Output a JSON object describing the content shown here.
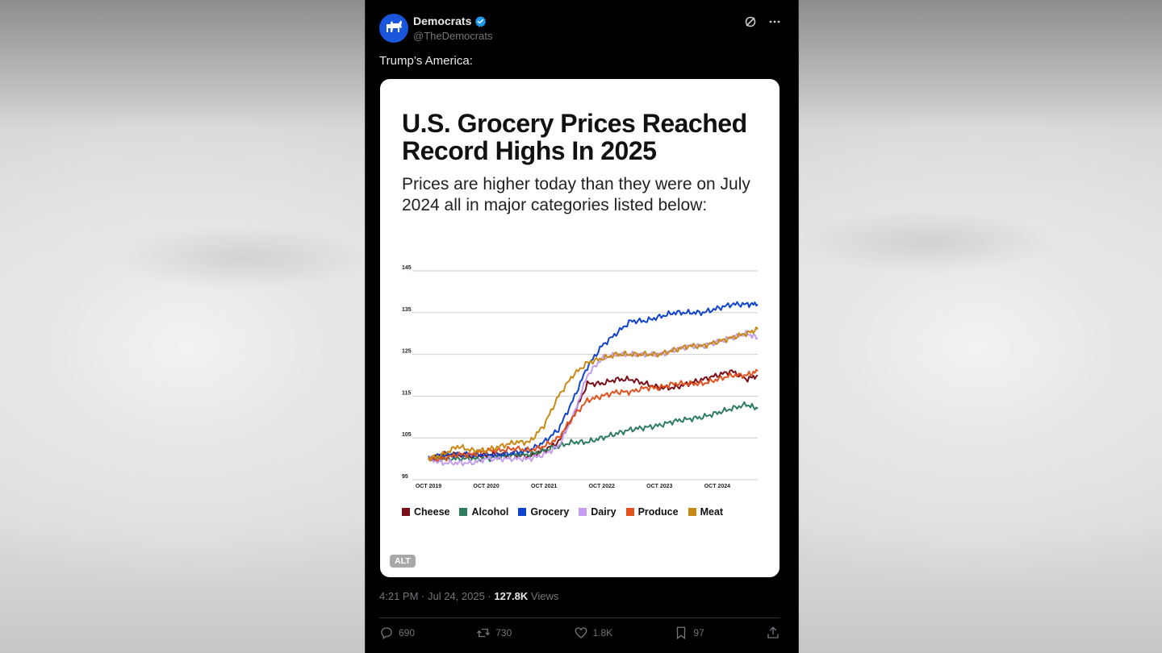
{
  "account": {
    "name": "Democrats",
    "handle": "@TheDemocrats",
    "verified": true,
    "avatar_color": "#1a56db"
  },
  "tweet": {
    "text": "Trump’s America:",
    "alt_badge": "ALT",
    "time": "4:21 PM · Jul 24, 2025 · ",
    "views_count": "127.8K",
    "views_label": " Views"
  },
  "actions": {
    "replies": "690",
    "reposts": "730",
    "likes": "1.8K",
    "bookmarks": "97"
  },
  "chart_data": {
    "type": "line",
    "title": "U.S. Grocery Prices Reached Record Highs In 2025",
    "subtitle": "Prices are higher today than they were on July 2024 all in major categories listed below:",
    "xlabel": "",
    "ylabel": "",
    "x": [
      2019.75,
      2020.0,
      2020.25,
      2020.5,
      2020.75,
      2021.0,
      2021.25,
      2021.5,
      2021.75,
      2022.0,
      2022.25,
      2022.5,
      2022.75,
      2023.0,
      2023.25,
      2023.5,
      2023.75,
      2024.0,
      2024.25,
      2024.5,
      2024.75,
      2025.0,
      2025.25,
      2025.45
    ],
    "x_ticks": [
      "OCT 2019",
      "OCT 2020",
      "OCT 2021",
      "OCT 2022",
      "OCT 2023",
      "OCT 2024"
    ],
    "y_ticks": [
      "95",
      "105",
      "115",
      "125",
      "135",
      "145"
    ],
    "ylim": [
      95,
      145
    ],
    "grid": true,
    "legend_position": "bottom",
    "series": [
      {
        "name": "Cheese",
        "color": "#7a0f1a",
        "values": [
          100,
          101,
          101,
          100.5,
          101,
          101,
          101,
          100.5,
          102,
          104,
          110,
          118,
          118,
          119,
          119,
          118,
          117,
          117,
          118,
          119,
          120,
          121,
          119,
          120
        ]
      },
      {
        "name": "Alcohol",
        "color": "#2e7d5e",
        "values": [
          100,
          100,
          100,
          100,
          100,
          100.5,
          101,
          101,
          102,
          103,
          104,
          104,
          105,
          106,
          107,
          107.5,
          108,
          109,
          109.5,
          110,
          111,
          112,
          113,
          112
        ]
      },
      {
        "name": "Grocery",
        "color": "#1144cc",
        "values": [
          100,
          101,
          101,
          101,
          101,
          101,
          101.5,
          102,
          104,
          107,
          114,
          122,
          127,
          130,
          133,
          133,
          134,
          135,
          135,
          135,
          136,
          137,
          137,
          137
        ]
      },
      {
        "name": "Dairy",
        "color": "#c49cf0",
        "values": [
          100,
          99,
          99,
          99,
          100,
          100,
          100,
          100,
          101,
          103,
          110,
          120,
          124,
          125,
          125,
          125,
          125,
          126,
          127,
          127,
          128,
          129,
          130,
          129
        ]
      },
      {
        "name": "Produce",
        "color": "#e0531f",
        "values": [
          100,
          100,
          101,
          101,
          102,
          102,
          102.5,
          102,
          103,
          105,
          110,
          114,
          115,
          116,
          116,
          117,
          117,
          118,
          118,
          118,
          119,
          120,
          120,
          121
        ]
      },
      {
        "name": "Meat",
        "color": "#c98a15",
        "values": [
          100,
          101,
          103,
          102,
          102,
          103,
          104,
          104,
          108,
          115,
          120,
          123,
          124,
          125,
          125,
          125,
          125,
          126,
          127,
          127,
          128,
          129,
          130,
          131
        ]
      }
    ]
  }
}
